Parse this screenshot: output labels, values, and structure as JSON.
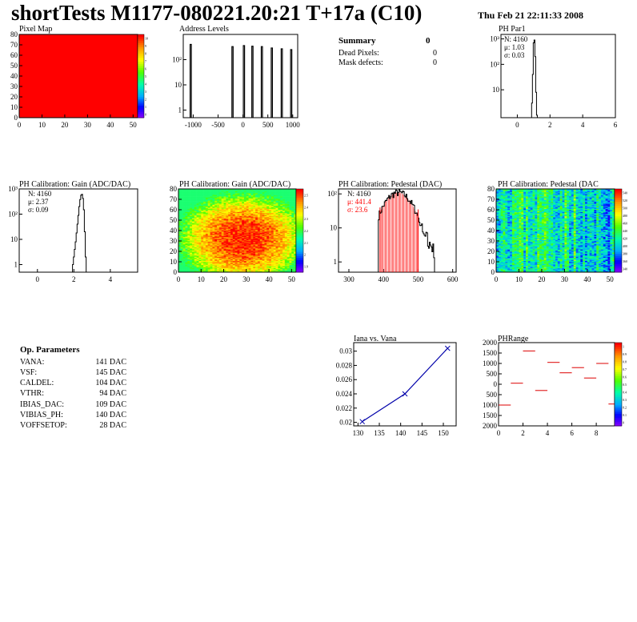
{
  "header": {
    "title": "shortTests M1177-080221.20:21 T+17a (C10)",
    "date": "Thu Feb 21 22:11:33 2008"
  },
  "summary": {
    "title": "Summary",
    "total": "0",
    "rows": [
      {
        "label": "Dead Pixels:",
        "value": "0"
      },
      {
        "label": "Mask defects:",
        "value": "0"
      }
    ]
  },
  "op_parameters": {
    "title": "Op. Parameters",
    "rows": [
      {
        "label": "VANA:",
        "value": "141 DAC"
      },
      {
        "label": "VSF:",
        "value": "145 DAC"
      },
      {
        "label": "CALDEL:",
        "value": "104 DAC"
      },
      {
        "label": "VTHR:",
        "value": "94 DAC"
      },
      {
        "label": "IBIAS_DAC:",
        "value": "109 DAC"
      },
      {
        "label": "VIBIAS_PH:",
        "value": "140 DAC"
      },
      {
        "label": "VOFFSETOP:",
        "value": "28 DAC"
      }
    ]
  },
  "colors": {
    "stats_red": "#ff0000",
    "trend_line": "#0000aa",
    "phrange_marks": "#dd0000",
    "pixel_map_fill": "#ff0000"
  },
  "chart_data": [
    {
      "id": "pixel-map",
      "type": "heatmap",
      "title": "Pixel Map",
      "xlim": [
        0,
        52
      ],
      "ylim": [
        0,
        80
      ],
      "xticks": [
        0,
        10,
        20,
        30,
        40,
        50
      ],
      "yticks": [
        0,
        10,
        20,
        30,
        40,
        50,
        60,
        70,
        80
      ],
      "uniform_value": 10,
      "zlim": [
        0,
        10
      ],
      "zticks": [
        "0",
        "1",
        "2",
        "3",
        "4",
        "5",
        "6",
        "7",
        "8",
        "9",
        "10"
      ]
    },
    {
      "id": "address-levels",
      "type": "bar",
      "title": "Address Levels",
      "log_y": true,
      "xlim": [
        -1200,
        1100
      ],
      "ylim": [
        0.5,
        1000
      ],
      "xticks": [
        -1000,
        -500,
        0,
        500,
        1000
      ],
      "xtick_labels": [
        "-1000",
        "-500",
        "0",
        "500",
        "1000"
      ],
      "yticks": [
        1,
        10,
        100
      ],
      "ytick_labels": [
        "1",
        "10",
        "10²"
      ],
      "peaks": [
        {
          "x": -1050,
          "y": 400
        },
        {
          "x": -210,
          "y": 330
        },
        {
          "x": 20,
          "y": 360
        },
        {
          "x": 190,
          "y": 340
        },
        {
          "x": 380,
          "y": 330
        },
        {
          "x": 580,
          "y": 290
        },
        {
          "x": 780,
          "y": 270
        },
        {
          "x": 970,
          "y": 250
        }
      ]
    },
    {
      "id": "ph-par1",
      "type": "bar",
      "title": "PH Par1",
      "log_y": true,
      "xlim": [
        -1,
        6
      ],
      "ylim": [
        0.8,
        1500
      ],
      "xticks": [
        0,
        2,
        4,
        6
      ],
      "yticks": [
        10,
        100,
        1000
      ],
      "ytick_labels": [
        "10",
        "10²",
        "10³"
      ],
      "stats": [
        {
          "name": "N",
          "value": "4160"
        },
        {
          "name": "μ",
          "value": "1.03"
        },
        {
          "name": "σ",
          "value": "0.03"
        }
      ],
      "histogram": [
        {
          "x": 0.9,
          "y": 3
        },
        {
          "x": 0.95,
          "y": 40
        },
        {
          "x": 1.0,
          "y": 700
        },
        {
          "x": 1.05,
          "y": 900
        },
        {
          "x": 1.1,
          "y": 200
        },
        {
          "x": 1.15,
          "y": 8
        },
        {
          "x": 1.2,
          "y": 1
        }
      ]
    },
    {
      "id": "gain-hist",
      "type": "bar",
      "title": "PH Calibration: Gain (ADC/DAC)",
      "log_y": true,
      "xlim": [
        -1,
        5.5
      ],
      "ylim": [
        0.5,
        1000
      ],
      "xticks": [
        0,
        2,
        4
      ],
      "yticks": [
        1,
        10,
        100,
        1000
      ],
      "ytick_labels": [
        "1",
        "10",
        "10²",
        "10³"
      ],
      "stats": [
        {
          "name": "N",
          "value": "4160"
        },
        {
          "name": "μ",
          "value": "2.37"
        },
        {
          "name": "σ",
          "value": "0.09"
        }
      ],
      "histogram": [
        {
          "x": 1.95,
          "y": 1
        },
        {
          "x": 2.0,
          "y": 2
        },
        {
          "x": 2.05,
          "y": 4
        },
        {
          "x": 2.1,
          "y": 8
        },
        {
          "x": 2.15,
          "y": 18
        },
        {
          "x": 2.2,
          "y": 40
        },
        {
          "x": 2.25,
          "y": 90
        },
        {
          "x": 2.3,
          "y": 200
        },
        {
          "x": 2.35,
          "y": 380
        },
        {
          "x": 2.4,
          "y": 560
        },
        {
          "x": 2.45,
          "y": 610
        },
        {
          "x": 2.5,
          "y": 420
        },
        {
          "x": 2.55,
          "y": 150
        },
        {
          "x": 2.6,
          "y": 20
        },
        {
          "x": 2.65,
          "y": 2
        }
      ]
    },
    {
      "id": "gain-map",
      "type": "heatmap",
      "title": "PH Calibration: Gain (ADC/DAC)",
      "xlim": [
        0,
        52
      ],
      "ylim": [
        0,
        80
      ],
      "xticks": [
        0,
        10,
        20,
        30,
        40,
        50
      ],
      "yticks": [
        0,
        10,
        20,
        30,
        40,
        50,
        60,
        70,
        80
      ],
      "zlim": [
        1.85,
        2.6
      ],
      "zticks": [
        "1.9",
        "2",
        "2.1",
        "2.2",
        "2.3",
        "2.4",
        "2.5"
      ]
    },
    {
      "id": "pedestal-hist",
      "type": "bar",
      "title": "PH Calibration: Pedestal (DAC)",
      "log_y": true,
      "xlim": [
        270,
        610
      ],
      "ylim": [
        0.5,
        140
      ],
      "xticks": [
        300,
        400,
        500,
        600
      ],
      "yticks": [
        1,
        10,
        100
      ],
      "ytick_labels": [
        "1",
        "10",
        "10²"
      ],
      "stats": [
        {
          "name": "N",
          "value": "4160"
        },
        {
          "name": "μ",
          "value": "441.4"
        },
        {
          "name": "σ",
          "value": "23.6"
        }
      ],
      "fit_range": [
        390,
        500
      ]
    },
    {
      "id": "pedestal-map",
      "type": "heatmap",
      "title": "PH Calibration: Pedestal (DAC",
      "xlim": [
        0,
        52
      ],
      "ylim": [
        0,
        80
      ],
      "xticks": [
        0,
        10,
        20,
        30,
        40,
        50
      ],
      "yticks": [
        0,
        10,
        20,
        30,
        40,
        50,
        60,
        70,
        80
      ],
      "zlim": [
        340,
        540
      ],
      "zticks": [
        "340",
        "360",
        "380",
        "400",
        "420",
        "440",
        "460",
        "480",
        "500",
        "520",
        "540"
      ]
    },
    {
      "id": "iana-vana",
      "type": "line",
      "title": "Iana vs. Vana",
      "xlim": [
        129,
        153
      ],
      "ylim": [
        0.0195,
        0.0312
      ],
      "xticks": [
        130,
        135,
        140,
        145,
        150
      ],
      "yticks": [
        0.02,
        0.022,
        0.024,
        0.026,
        0.028,
        0.03
      ],
      "ytick_labels": [
        "0.02",
        "0.022",
        "0.024",
        "0.026",
        "0.028",
        "0.03"
      ],
      "x": [
        131,
        141,
        151
      ],
      "y": [
        0.0201,
        0.024,
        0.0304
      ]
    },
    {
      "id": "phrange",
      "type": "heatmap",
      "title": "PHRange",
      "xlim": [
        0,
        9.5
      ],
      "ylim": [
        -2000,
        2000
      ],
      "xticks": [
        0,
        2,
        4,
        6,
        8
      ],
      "yticks": [
        -2000,
        -1500,
        -1000,
        -500,
        0,
        500,
        1000,
        1500,
        2000
      ],
      "ytick_labels": [
        "2000",
        "1500",
        "1000",
        "500",
        "0",
        "500",
        "1000",
        "1500",
        "2000"
      ],
      "segments": [
        {
          "x": 0,
          "y": -1000
        },
        {
          "x": 1,
          "y": 50
        },
        {
          "x": 2,
          "y": 1600
        },
        {
          "x": 3,
          "y": -300
        },
        {
          "x": 4,
          "y": 1050
        },
        {
          "x": 5,
          "y": 550
        },
        {
          "x": 6,
          "y": 800
        },
        {
          "x": 7,
          "y": 300
        },
        {
          "x": 8,
          "y": 1000
        },
        {
          "x": 9,
          "y": -950
        }
      ],
      "zlim": [
        0,
        1
      ],
      "zticks": [
        "0",
        "0.1",
        "0.2",
        "0.3",
        "0.4",
        "0.5",
        "0.6",
        "0.7",
        "0.8",
        "0.9",
        "1"
      ]
    }
  ]
}
